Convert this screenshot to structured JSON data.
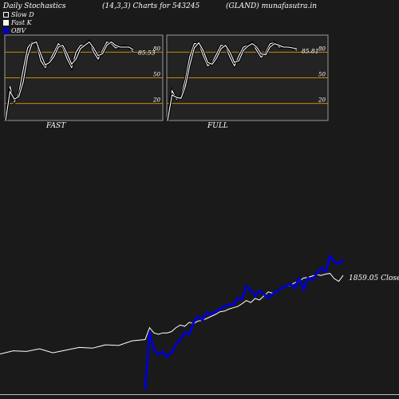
{
  "header": {
    "title": "Daily Stochastics",
    "params": "(14,3,3) Charts for 543245",
    "symbol": "(GLAND) munafasutra.in"
  },
  "legend": {
    "slow_d": "Slow  D",
    "fast_k": "Fast K",
    "obv": "OBV"
  },
  "colors": {
    "background": "#1a1a1a",
    "panel_bg": "#232323",
    "grid_line": "#c88a00",
    "stoch_line": "#ffffff",
    "obv_line": "#0000cc",
    "price_line": "#ffffff"
  },
  "close_label": "1859.05 Close",
  "chart_data": [
    {
      "type": "line",
      "panel": "FAST",
      "xlabel": "FAST",
      "ylim": [
        0,
        100
      ],
      "y_ticks": [
        {
          "value": 80,
          "label": "80"
        },
        {
          "value": 50,
          "label": "50"
        },
        {
          "value": 20,
          "label": "20"
        }
      ],
      "value_label": "85.53",
      "series": [
        {
          "values": [
            0,
            40,
            22,
            32,
            60,
            85,
            92,
            90,
            70,
            62,
            70,
            80,
            90,
            85,
            72,
            62,
            80,
            88,
            88,
            93,
            80,
            72,
            82,
            92,
            90,
            85,
            86,
            87,
            86,
            80
          ]
        },
        {
          "values": [
            0,
            34,
            25,
            28,
            45,
            75,
            90,
            92,
            78,
            65,
            68,
            75,
            86,
            88,
            78,
            66,
            72,
            84,
            88,
            92,
            85,
            76,
            78,
            88,
            92,
            88,
            86,
            86,
            86,
            83
          ]
        }
      ]
    },
    {
      "type": "line",
      "panel": "FULL",
      "xlabel": "FULL",
      "ylim": [
        0,
        100
      ],
      "y_ticks": [
        {
          "value": 80,
          "label": "80"
        },
        {
          "value": 50,
          "label": "50"
        },
        {
          "value": 20,
          "label": "20"
        }
      ],
      "value_label": "85.81",
      "series": [
        {
          "values": [
            0,
            35,
            25,
            28,
            48,
            75,
            90,
            90,
            76,
            64,
            68,
            78,
            88,
            87,
            74,
            64,
            76,
            86,
            88,
            91,
            82,
            74,
            80,
            90,
            91,
            86,
            86,
            86,
            85,
            82
          ]
        },
        {
          "values": [
            0,
            30,
            27,
            26,
            40,
            65,
            85,
            91,
            82,
            68,
            66,
            73,
            84,
            88,
            80,
            68,
            70,
            82,
            87,
            90,
            86,
            78,
            77,
            86,
            90,
            88,
            86,
            86,
            85,
            84
          ]
        }
      ]
    },
    {
      "type": "line",
      "panel": "price-obv",
      "series": [
        {
          "name": "OBV",
          "x": [
            0,
            1,
            2,
            3,
            4,
            5,
            6,
            7,
            8,
            9,
            10,
            11,
            12,
            13,
            14,
            15,
            16,
            17,
            18,
            19,
            20,
            21,
            22,
            23,
            24,
            25,
            26,
            27,
            28,
            29,
            30,
            31,
            32,
            33,
            34,
            35,
            36,
            37,
            38,
            39,
            40,
            41,
            42,
            43,
            44,
            45
          ],
          "values": [
            5,
            62,
            45,
            40,
            43,
            38,
            42,
            50,
            55,
            62,
            60,
            72,
            78,
            74,
            82,
            80,
            83,
            85,
            88,
            90,
            89,
            96,
            95,
            108,
            104,
            98,
            103,
            100,
            96,
            100,
            103,
            106,
            108,
            110,
            106,
            116,
            104,
            116,
            114,
            120,
            126,
            122,
            138,
            132,
            130,
            134
          ]
        },
        {
          "name": "Close",
          "x": [
            -33,
            -30,
            -27,
            -24,
            -21,
            -18,
            -15,
            -12,
            -9,
            -6,
            -3,
            0,
            1,
            2,
            3,
            4,
            5,
            6,
            7,
            8,
            9,
            10,
            11,
            12,
            13,
            14,
            15,
            16,
            17,
            18,
            19,
            20,
            21,
            22,
            23,
            24,
            25,
            26,
            27,
            28,
            29,
            30,
            31,
            32,
            33,
            34,
            35,
            36,
            37,
            38,
            39,
            40,
            41,
            42,
            43,
            44,
            45
          ],
          "values": [
            1740,
            1745,
            1744,
            1748,
            1742,
            1746,
            1750,
            1749,
            1754,
            1753,
            1760,
            1762,
            1780,
            1772,
            1770,
            1772,
            1772,
            1774,
            1780,
            1784,
            1782,
            1788,
            1786,
            1790,
            1791,
            1794,
            1797,
            1800,
            1804,
            1805,
            1808,
            1810,
            1812,
            1816,
            1821,
            1818,
            1824,
            1822,
            1828,
            1834,
            1832,
            1836,
            1840,
            1842,
            1844,
            1848,
            1850,
            1855,
            1856,
            1858,
            1860,
            1859,
            1861,
            1862,
            1854,
            1850,
            1859
          ]
        }
      ]
    }
  ]
}
